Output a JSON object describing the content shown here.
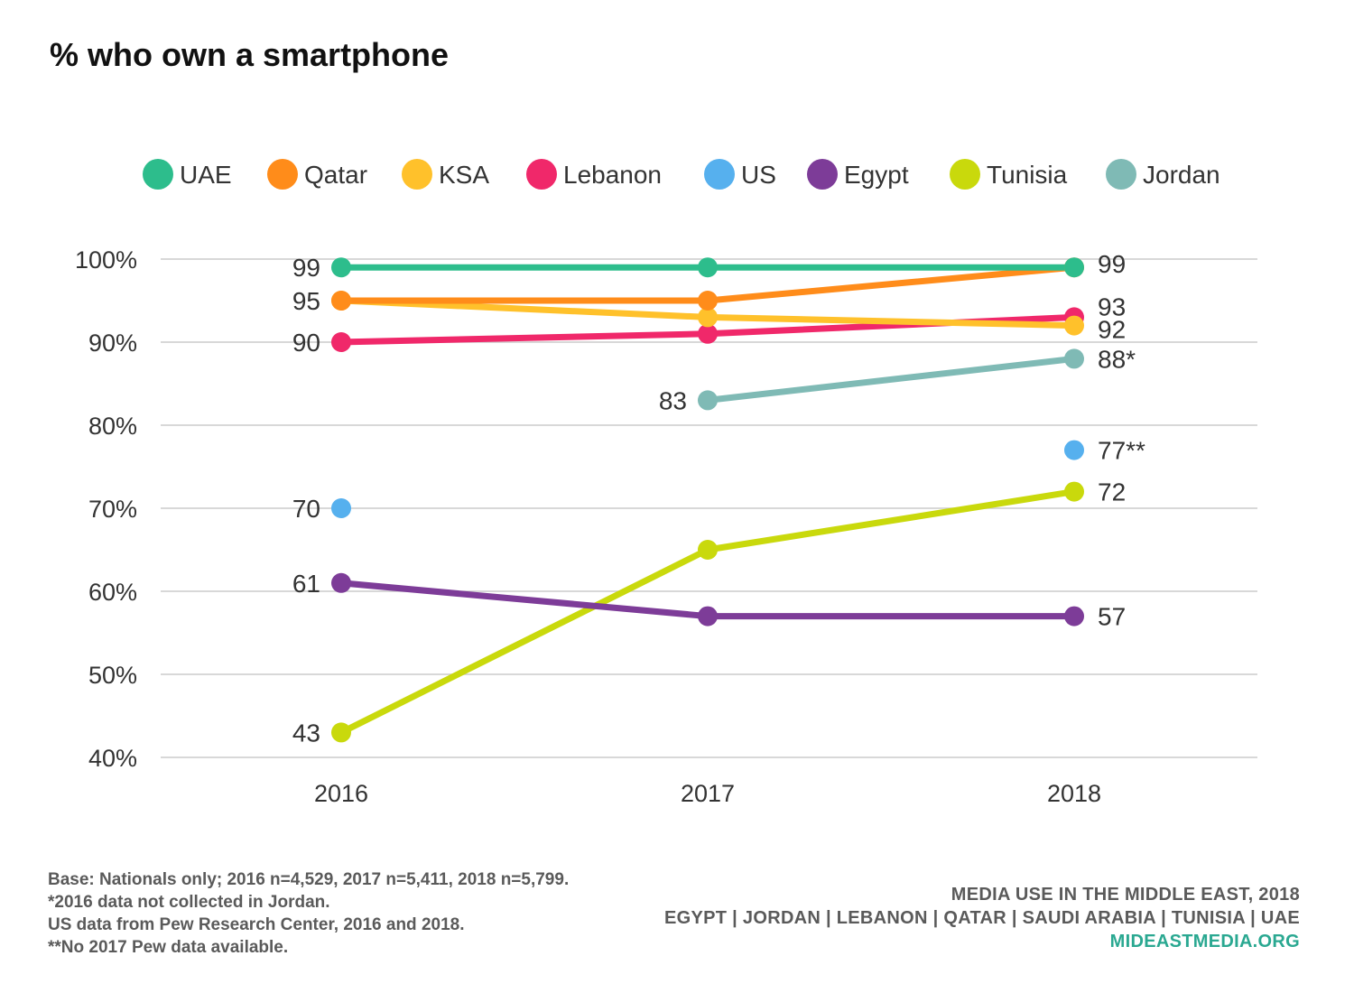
{
  "title": "% who own a smartphone",
  "chart_data": {
    "type": "line",
    "x": [
      "2016",
      "2017",
      "2018"
    ],
    "ylim": [
      40,
      100
    ],
    "yticks": [
      "40%",
      "50%",
      "60%",
      "70%",
      "80%",
      "90%",
      "100%"
    ],
    "grid": true,
    "legend_position": "top",
    "series": [
      {
        "name": "UAE",
        "color": "#2dbd8c",
        "values": [
          99,
          99,
          99
        ],
        "labels": [
          "99",
          "",
          ""
        ]
      },
      {
        "name": "Qatar",
        "color": "#ff8c1a",
        "values": [
          95,
          95,
          99
        ],
        "labels": [
          "95",
          "",
          "99"
        ]
      },
      {
        "name": "KSA",
        "color": "#ffc12b",
        "values": [
          95,
          93,
          92
        ],
        "labels": [
          "",
          "",
          "92"
        ]
      },
      {
        "name": "Lebanon",
        "color": "#f0286a",
        "values": [
          90,
          91,
          93
        ],
        "labels": [
          "90",
          "",
          "93"
        ]
      },
      {
        "name": "US",
        "color": "#56b0ee",
        "values": [
          70,
          null,
          77
        ],
        "labels": [
          "70",
          "",
          "77**"
        ]
      },
      {
        "name": "Egypt",
        "color": "#7d3c98",
        "values": [
          61,
          57,
          57
        ],
        "labels": [
          "61",
          "",
          "57"
        ]
      },
      {
        "name": "Tunisia",
        "color": "#c9d90c",
        "values": [
          43,
          65,
          72
        ],
        "labels": [
          "43",
          "",
          "72"
        ]
      },
      {
        "name": "Jordan",
        "color": "#7fbab5",
        "values": [
          null,
          83,
          88
        ],
        "labels": [
          "",
          "83",
          "88*"
        ]
      }
    ]
  },
  "footer": {
    "notes": [
      "Base: Nationals only; 2016 n=4,529, 2017 n=5,411, 2018 n=5,799.",
      "*2016 data not collected in Jordan.",
      "US data from Pew Research Center, 2016 and 2018.",
      "**No 2017 Pew data available."
    ],
    "source_title": "MEDIA USE IN THE MIDDLE EAST, 2018",
    "countries": "EGYPT | JORDAN | LEBANON | QATAR | SAUDI ARABIA | TUNISIA | UAE",
    "site": "MIDEASTMEDIA.ORG"
  }
}
